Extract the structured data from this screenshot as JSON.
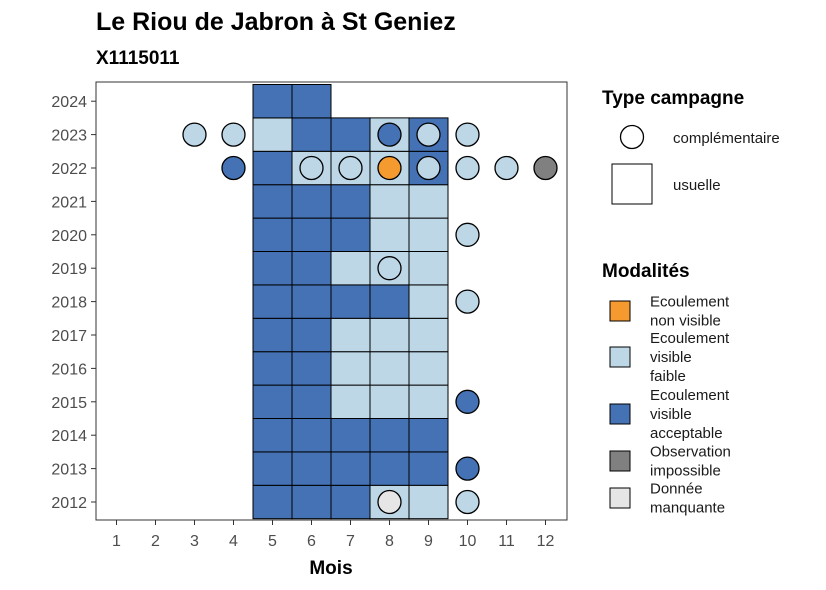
{
  "chart_data": {
    "type": "heatmap",
    "title": "Le Riou de Jabron à St Geniez",
    "subtitle": "X1115011",
    "xlabel": "Mois",
    "ylabel": "",
    "x_ticks": [
      1,
      2,
      3,
      4,
      5,
      6,
      7,
      8,
      9,
      10,
      11,
      12
    ],
    "y_ticks": [
      2012,
      2013,
      2014,
      2015,
      2016,
      2017,
      2018,
      2019,
      2020,
      2021,
      2022,
      2023,
      2024
    ],
    "xlim": [
      0.5,
      12.5
    ],
    "ylim": [
      2011.5,
      2024.5
    ],
    "colors": {
      "non_visible": "#f59a2f",
      "faible": "#bdd7e7",
      "acceptable": "#4472b4",
      "impossible": "#808080",
      "manquante": "#e6e6e6"
    },
    "legend_type": {
      "title": "Type campagne",
      "items": [
        {
          "key": "complementaire",
          "label": "complémentaire",
          "shape": "circle"
        },
        {
          "key": "usuelle",
          "label": "usuelle",
          "shape": "square"
        }
      ]
    },
    "legend_modalites": {
      "title": "Modalités",
      "items": [
        {
          "key": "non_visible",
          "label_lines": [
            "Ecoulement",
            "non visible"
          ]
        },
        {
          "key": "faible",
          "label_lines": [
            "Ecoulement",
            "visible",
            "faible"
          ]
        },
        {
          "key": "acceptable",
          "label_lines": [
            "Ecoulement",
            "visible",
            "acceptable"
          ]
        },
        {
          "key": "impossible",
          "label_lines": [
            "Observation",
            "impossible"
          ]
        },
        {
          "key": "manquante",
          "label_lines": [
            "Donnée",
            "manquante"
          ]
        }
      ]
    },
    "usuelle": [
      {
        "year": 2012,
        "month": 5,
        "modalite": "acceptable"
      },
      {
        "year": 2012,
        "month": 6,
        "modalite": "acceptable"
      },
      {
        "year": 2012,
        "month": 7,
        "modalite": "acceptable"
      },
      {
        "year": 2012,
        "month": 8,
        "modalite": "faible"
      },
      {
        "year": 2012,
        "month": 9,
        "modalite": "faible"
      },
      {
        "year": 2013,
        "month": 5,
        "modalite": "acceptable"
      },
      {
        "year": 2013,
        "month": 6,
        "modalite": "acceptable"
      },
      {
        "year": 2013,
        "month": 7,
        "modalite": "acceptable"
      },
      {
        "year": 2013,
        "month": 8,
        "modalite": "acceptable"
      },
      {
        "year": 2013,
        "month": 9,
        "modalite": "acceptable"
      },
      {
        "year": 2014,
        "month": 5,
        "modalite": "acceptable"
      },
      {
        "year": 2014,
        "month": 6,
        "modalite": "acceptable"
      },
      {
        "year": 2014,
        "month": 7,
        "modalite": "acceptable"
      },
      {
        "year": 2014,
        "month": 8,
        "modalite": "acceptable"
      },
      {
        "year": 2014,
        "month": 9,
        "modalite": "acceptable"
      },
      {
        "year": 2015,
        "month": 5,
        "modalite": "acceptable"
      },
      {
        "year": 2015,
        "month": 6,
        "modalite": "acceptable"
      },
      {
        "year": 2015,
        "month": 7,
        "modalite": "faible"
      },
      {
        "year": 2015,
        "month": 8,
        "modalite": "faible"
      },
      {
        "year": 2015,
        "month": 9,
        "modalite": "faible"
      },
      {
        "year": 2016,
        "month": 5,
        "modalite": "acceptable"
      },
      {
        "year": 2016,
        "month": 6,
        "modalite": "acceptable"
      },
      {
        "year": 2016,
        "month": 7,
        "modalite": "faible"
      },
      {
        "year": 2016,
        "month": 8,
        "modalite": "faible"
      },
      {
        "year": 2016,
        "month": 9,
        "modalite": "faible"
      },
      {
        "year": 2017,
        "month": 5,
        "modalite": "acceptable"
      },
      {
        "year": 2017,
        "month": 6,
        "modalite": "acceptable"
      },
      {
        "year": 2017,
        "month": 7,
        "modalite": "faible"
      },
      {
        "year": 2017,
        "month": 8,
        "modalite": "faible"
      },
      {
        "year": 2017,
        "month": 9,
        "modalite": "faible"
      },
      {
        "year": 2018,
        "month": 5,
        "modalite": "acceptable"
      },
      {
        "year": 2018,
        "month": 6,
        "modalite": "acceptable"
      },
      {
        "year": 2018,
        "month": 7,
        "modalite": "acceptable"
      },
      {
        "year": 2018,
        "month": 8,
        "modalite": "acceptable"
      },
      {
        "year": 2018,
        "month": 9,
        "modalite": "faible"
      },
      {
        "year": 2019,
        "month": 5,
        "modalite": "acceptable"
      },
      {
        "year": 2019,
        "month": 6,
        "modalite": "acceptable"
      },
      {
        "year": 2019,
        "month": 7,
        "modalite": "faible"
      },
      {
        "year": 2019,
        "month": 8,
        "modalite": "faible"
      },
      {
        "year": 2019,
        "month": 9,
        "modalite": "faible"
      },
      {
        "year": 2020,
        "month": 5,
        "modalite": "acceptable"
      },
      {
        "year": 2020,
        "month": 6,
        "modalite": "acceptable"
      },
      {
        "year": 2020,
        "month": 7,
        "modalite": "acceptable"
      },
      {
        "year": 2020,
        "month": 8,
        "modalite": "faible"
      },
      {
        "year": 2020,
        "month": 9,
        "modalite": "faible"
      },
      {
        "year": 2021,
        "month": 5,
        "modalite": "acceptable"
      },
      {
        "year": 2021,
        "month": 6,
        "modalite": "acceptable"
      },
      {
        "year": 2021,
        "month": 7,
        "modalite": "acceptable"
      },
      {
        "year": 2021,
        "month": 8,
        "modalite": "faible"
      },
      {
        "year": 2021,
        "month": 9,
        "modalite": "faible"
      },
      {
        "year": 2022,
        "month": 5,
        "modalite": "acceptable"
      },
      {
        "year": 2022,
        "month": 6,
        "modalite": "faible"
      },
      {
        "year": 2022,
        "month": 7,
        "modalite": "faible"
      },
      {
        "year": 2022,
        "month": 8,
        "modalite": "faible"
      },
      {
        "year": 2022,
        "month": 9,
        "modalite": "acceptable"
      },
      {
        "year": 2023,
        "month": 5,
        "modalite": "faible"
      },
      {
        "year": 2023,
        "month": 6,
        "modalite": "acceptable"
      },
      {
        "year": 2023,
        "month": 7,
        "modalite": "acceptable"
      },
      {
        "year": 2023,
        "month": 8,
        "modalite": "faible"
      },
      {
        "year": 2023,
        "month": 9,
        "modalite": "acceptable"
      },
      {
        "year": 2024,
        "month": 5,
        "modalite": "acceptable"
      },
      {
        "year": 2024,
        "month": 6,
        "modalite": "acceptable"
      }
    ],
    "complementaire": [
      {
        "year": 2012,
        "month": 8,
        "modalite": "manquante"
      },
      {
        "year": 2012,
        "month": 10,
        "modalite": "faible"
      },
      {
        "year": 2013,
        "month": 10,
        "modalite": "acceptable"
      },
      {
        "year": 2015,
        "month": 10,
        "modalite": "acceptable"
      },
      {
        "year": 2018,
        "month": 10,
        "modalite": "faible"
      },
      {
        "year": 2019,
        "month": 8,
        "modalite": "faible"
      },
      {
        "year": 2020,
        "month": 10,
        "modalite": "faible"
      },
      {
        "year": 2022,
        "month": 4,
        "modalite": "acceptable"
      },
      {
        "year": 2022,
        "month": 6,
        "modalite": "faible"
      },
      {
        "year": 2022,
        "month": 7,
        "modalite": "faible"
      },
      {
        "year": 2022,
        "month": 8,
        "modalite": "non_visible"
      },
      {
        "year": 2022,
        "month": 9,
        "modalite": "faible"
      },
      {
        "year": 2022,
        "month": 10,
        "modalite": "faible"
      },
      {
        "year": 2022,
        "month": 11,
        "modalite": "faible"
      },
      {
        "year": 2022,
        "month": 12,
        "modalite": "impossible"
      },
      {
        "year": 2023,
        "month": 3,
        "modalite": "faible"
      },
      {
        "year": 2023,
        "month": 4,
        "modalite": "faible"
      },
      {
        "year": 2023,
        "month": 8,
        "modalite": "acceptable"
      },
      {
        "year": 2023,
        "month": 9,
        "modalite": "faible"
      },
      {
        "year": 2023,
        "month": 10,
        "modalite": "faible"
      }
    ]
  }
}
